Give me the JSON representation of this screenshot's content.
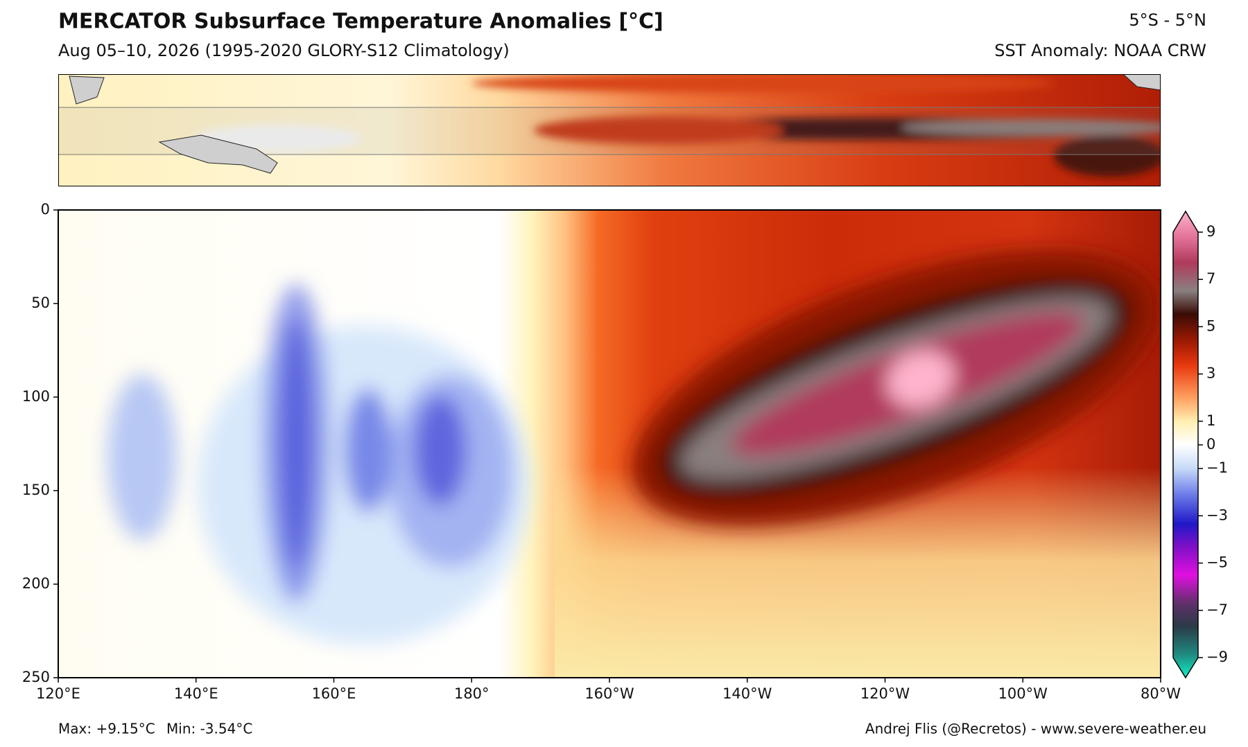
{
  "chart_data": {
    "type": "contour",
    "title": "MERCATOR Subsurface Temperature Anomalies [°C]",
    "subtitle": "Aug 05–10, 2026 (1995-2020 GLORY-S12 Climatology)",
    "region": "5°S - 5°N",
    "sst_source": "SST Anomaly: NOAA CRW",
    "xlim": [
      120,
      280
    ],
    "xticks": [
      {
        "value": 120,
        "label": "120°E"
      },
      {
        "value": 140,
        "label": "140°E"
      },
      {
        "value": 160,
        "label": "160°E"
      },
      {
        "value": 180,
        "label": "180°"
      },
      {
        "value": 200,
        "label": "160°W"
      },
      {
        "value": 220,
        "label": "140°W"
      },
      {
        "value": 240,
        "label": "120°W"
      },
      {
        "value": 260,
        "label": "100°W"
      },
      {
        "value": 280,
        "label": "80°W"
      }
    ],
    "ylim": [
      0,
      250
    ],
    "y_inverted": true,
    "yticks": [
      0,
      50,
      100,
      150,
      200,
      250
    ],
    "colorbar": {
      "lim": [
        -9,
        9
      ],
      "ticks": [
        9,
        7,
        5,
        3,
        1,
        0,
        {
          "value": -1,
          "label": "−1"
        },
        {
          "value": -3,
          "label": "−3"
        },
        {
          "value": -5,
          "label": "−5"
        },
        {
          "value": -7,
          "label": "−7"
        },
        {
          "value": -9,
          "label": "−9"
        }
      ]
    },
    "max_label": "Max: +9.15°C",
    "min_label": "Min: -3.54°C",
    "credit": "Andrej Flis (@Recretos) - www.severe-weather.eu"
  }
}
